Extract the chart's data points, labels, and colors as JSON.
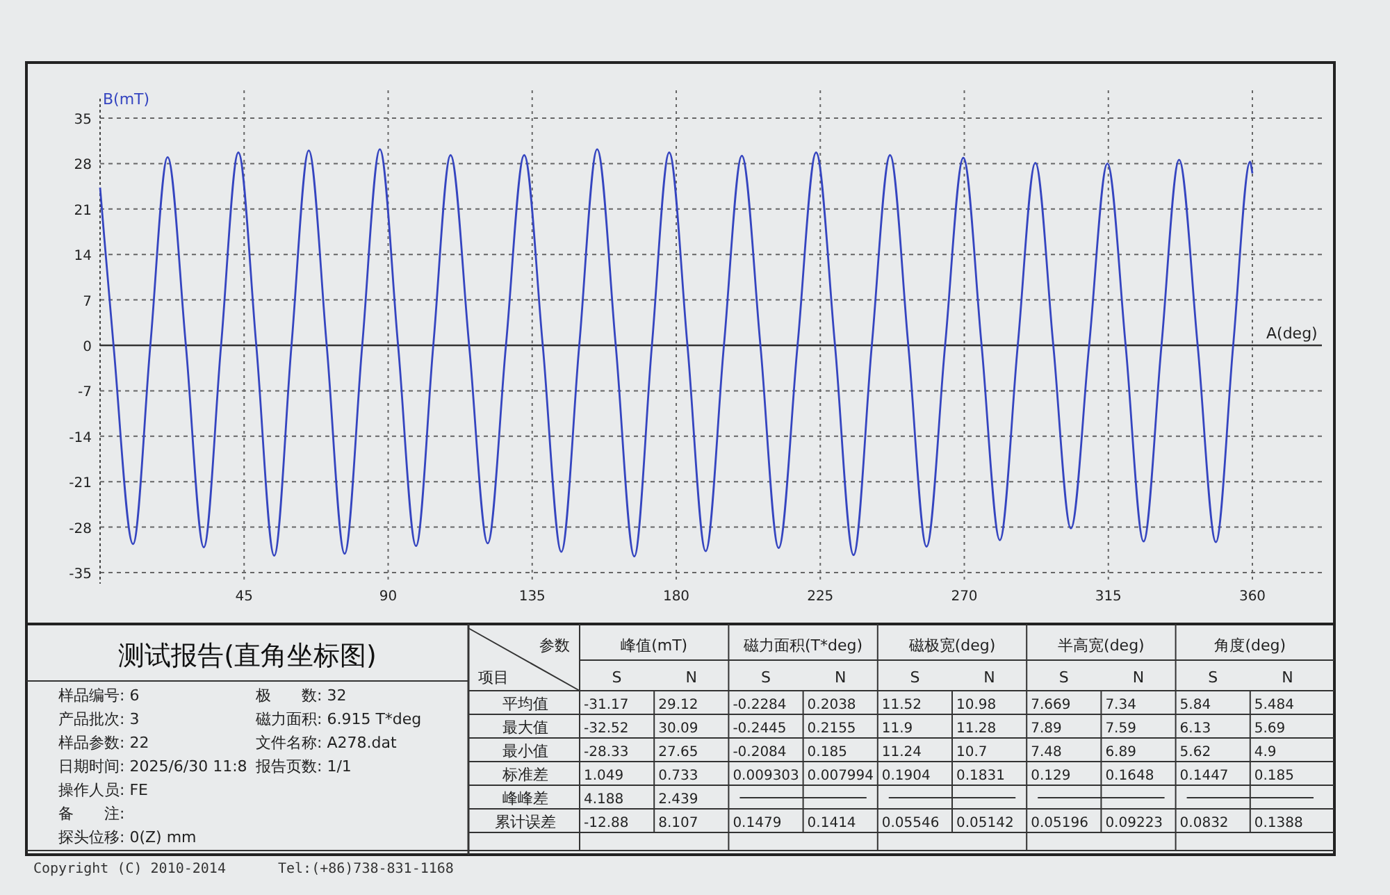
{
  "chart_data": {
    "type": "line",
    "title": "测试报告(直角坐标图)",
    "xlabel": "A(deg)",
    "ylabel": "B(mT)",
    "color": "#3545c0",
    "grid": true,
    "xlim": [
      0,
      360
    ],
    "xticks": [
      45,
      90,
      135,
      180,
      225,
      270,
      315,
      360
    ],
    "ylim": [
      -35,
      35
    ],
    "yticks": [
      -35,
      -28,
      -21,
      -14,
      -7,
      0,
      7,
      14,
      21,
      28,
      35
    ],
    "x": [
      0,
      4.2,
      10.3,
      15.7,
      21.1,
      26.8,
      32.4,
      37.8,
      43.2,
      48.8,
      54.4,
      59.8,
      65.2,
      70.8,
      76.4,
      81.9,
      87.4,
      93.1,
      98.7,
      104.1,
      109.5,
      115.3,
      121.1,
      126.8,
      132.5,
      138.3,
      144.1,
      149.7,
      155.3,
      161.1,
      166.9,
      172.4,
      177.8,
      183.5,
      189.2,
      194.9,
      200.5,
      206.3,
      212.0,
      217.9,
      223.7,
      229.6,
      235.4,
      241.1,
      246.8,
      252.5,
      258.2,
      264.0,
      269.7,
      275.4,
      281.1,
      286.7,
      292.2,
      297.8,
      303.3,
      309.0,
      314.7,
      320.4,
      326.0,
      331.6,
      337.1,
      342.9,
      348.6,
      354.0,
      359.3,
      360
    ],
    "values": [
      24.3,
      0,
      -30.6,
      0,
      29.0,
      0,
      -31.1,
      0,
      29.7,
      0,
      -32.4,
      0,
      30.0,
      0,
      -32.1,
      0,
      30.2,
      0,
      -30.9,
      0,
      29.3,
      0,
      -30.5,
      0,
      29.3,
      0,
      -31.8,
      0,
      30.2,
      0,
      -32.5,
      0,
      29.7,
      0,
      -31.7,
      0,
      29.2,
      0,
      -31.2,
      0,
      29.7,
      0,
      -32.3,
      0,
      29.3,
      0,
      -31.0,
      0,
      28.9,
      0,
      -30.0,
      0,
      28.1,
      0,
      -28.2,
      0,
      28.0,
      0,
      -30.2,
      0,
      28.6,
      0,
      -30.3,
      0,
      28.3,
      26.5
    ],
    "annotations": [
      "样品编号: 6",
      "产品批次: 3",
      "样品参数: 22",
      "日期时间: 2025/6/30 11:8",
      "操作人员: FE",
      "备　　注:",
      "探头位移: 0(Z) mm",
      "极　　数: 32",
      "磁力面积: 6.915 T*deg",
      "文件名称: A278.dat",
      "报告页数: 1/1",
      "参数",
      "项目",
      "峰值(mT)",
      "磁力面积(T*deg)",
      "磁极宽(deg)",
      "半高宽(deg)",
      "角度(deg)",
      "S",
      "N",
      "S",
      "N",
      "S",
      "N",
      "S",
      "N",
      "S",
      "N",
      "平均值",
      "最大值",
      "最小值",
      "标准差",
      "峰峰差",
      "累计误差",
      "-31.17",
      "29.12",
      "-0.2284",
      "0.2038",
      "11.52",
      "10.98",
      "7.669",
      "7.34",
      "5.84",
      "5.484",
      "-32.52",
      "30.09",
      "-0.2445",
      "0.2155",
      "11.9",
      "11.28",
      "7.89",
      "7.59",
      "6.13",
      "5.69",
      "-28.33",
      "27.65",
      "-0.2084",
      "0.185",
      "11.24",
      "10.7",
      "7.48",
      "6.89",
      "5.62",
      "4.9",
      "1.049",
      "0.733",
      "0.009303",
      "0.007994",
      "0.1904",
      "0.1831",
      "0.129",
      "0.1648",
      "0.1447",
      "0.185",
      "4.188",
      "2.439",
      "-12.88",
      "8.107",
      "0.1479",
      "0.1414",
      "0.05546",
      "0.05142",
      "0.05196",
      "0.09223",
      "0.0832",
      "0.1388",
      "Copyright (C) 2010-2014",
      "Tel:(+86)738-831-1168"
    ]
  }
}
